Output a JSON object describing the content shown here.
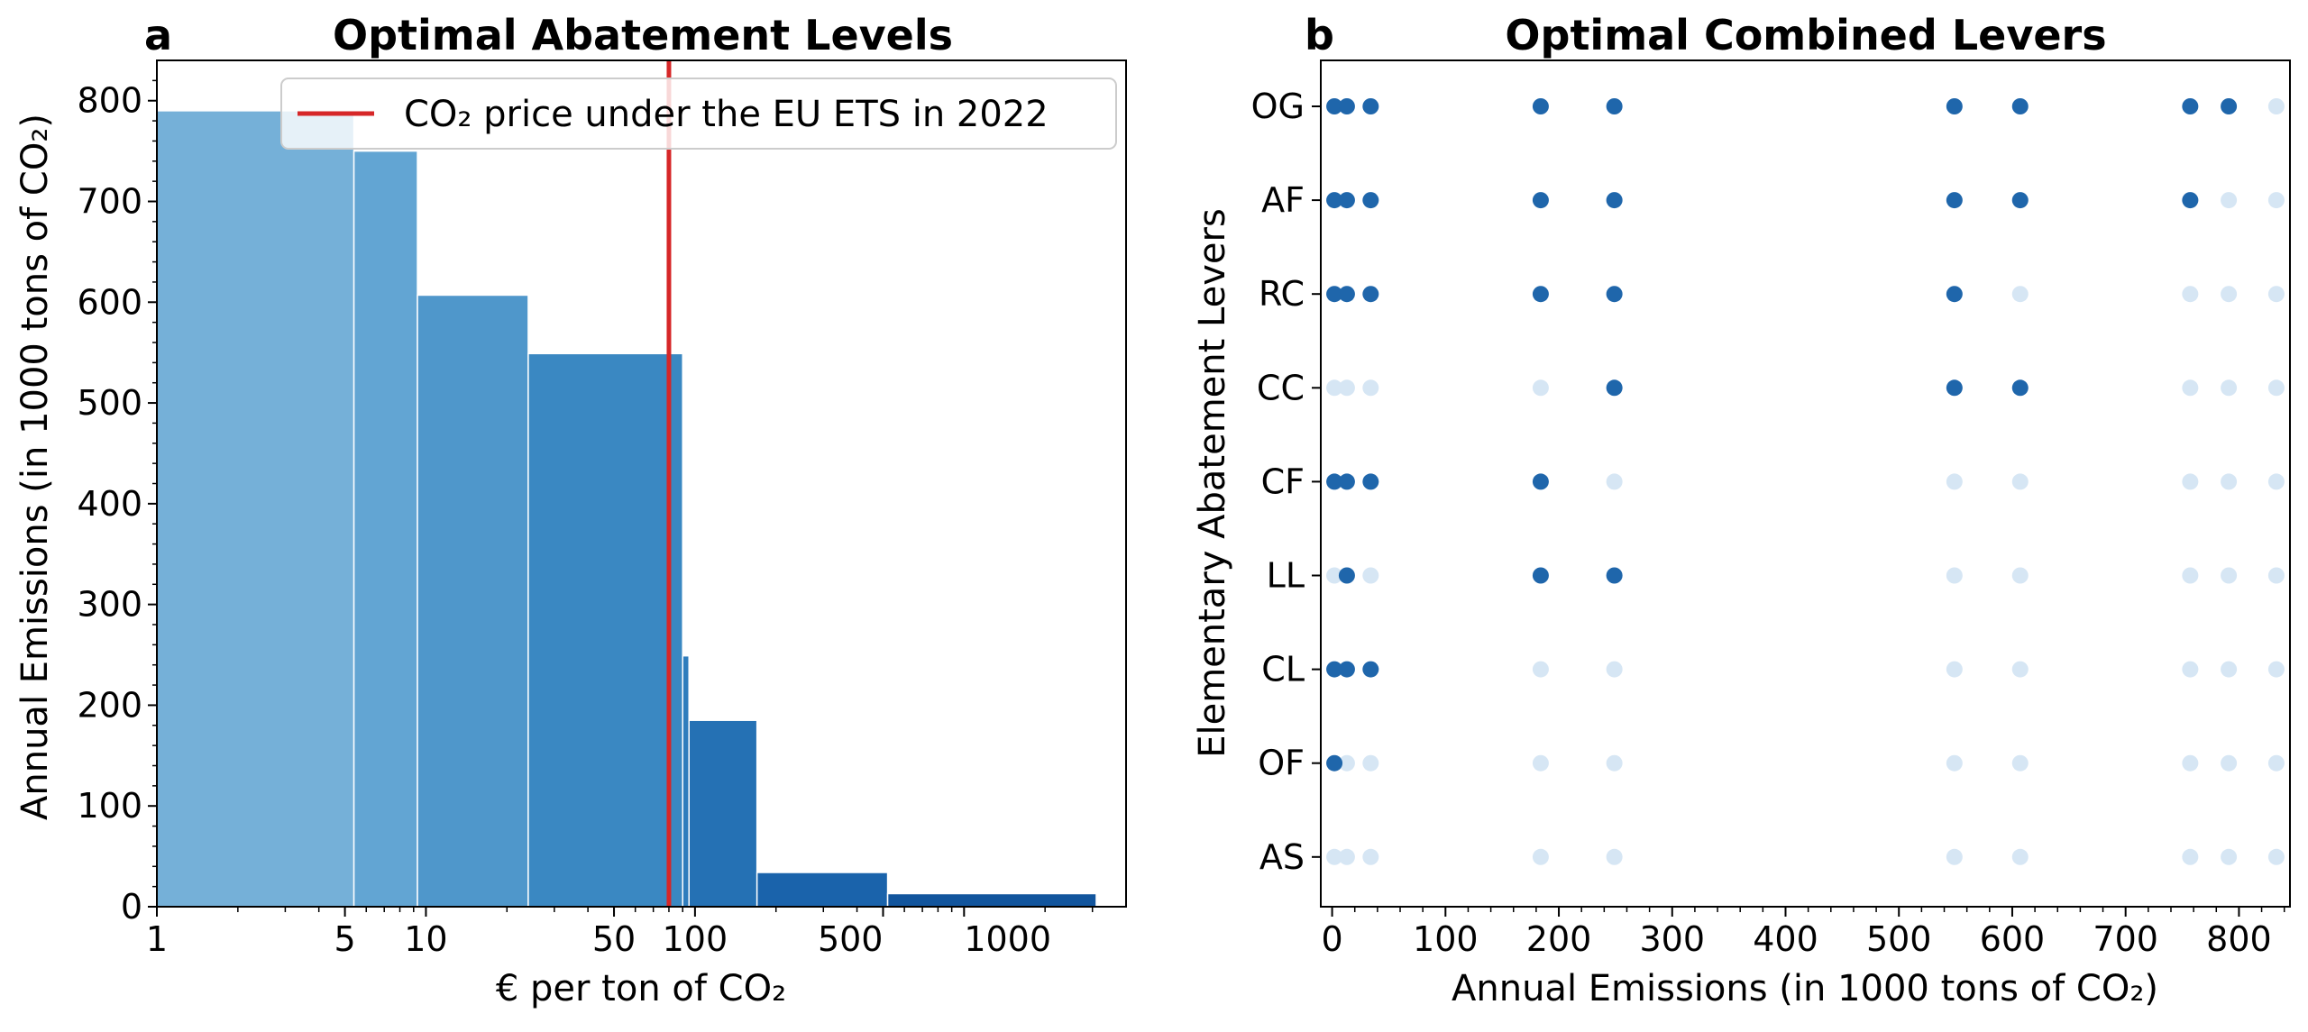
{
  "chart_data": [
    {
      "panel": "a",
      "type": "bar",
      "title": "Optimal Abatement Levels",
      "xlabel": "€ per ton of CO₂",
      "ylabel": "Annual Emissions (in 1000 tons of CO₂)",
      "xscale": "log",
      "xlim": [
        1,
        4000
      ],
      "ylim": [
        0,
        840
      ],
      "xticks": [
        1,
        5,
        10,
        50,
        100,
        500,
        1000
      ],
      "xtick_labels": [
        "1",
        "5",
        "10",
        "50",
        "100",
        "500",
        "1000"
      ],
      "yticks": [
        0,
        100,
        200,
        300,
        400,
        500,
        600,
        700,
        800
      ],
      "bars": [
        {
          "x0": 1,
          "x1": 5.4,
          "value": 790,
          "color": "#75b0d8"
        },
        {
          "x0": 5.4,
          "x1": 9.3,
          "value": 750,
          "color": "#62a5d3"
        },
        {
          "x0": 9.3,
          "x1": 24,
          "value": 607,
          "color": "#4f97cb"
        },
        {
          "x0": 24,
          "x1": 90,
          "value": 549,
          "color": "#3a88c2"
        },
        {
          "x0": 90,
          "x1": 95,
          "value": 249,
          "color": "#2f7dbd"
        },
        {
          "x0": 95,
          "x1": 170,
          "value": 185,
          "color": "#2571b4"
        },
        {
          "x0": 170,
          "x1": 520,
          "value": 34,
          "color": "#1a63ab"
        },
        {
          "x0": 520,
          "x1": 3100,
          "value": 13,
          "color": "#12559d"
        }
      ],
      "reference_line": {
        "x": 80,
        "label": "CO₂ price under the EU ETS in 2022",
        "color": "#d62728"
      },
      "legend_position": "top-right"
    },
    {
      "panel": "b",
      "type": "scatter",
      "title": "Optimal Combined Levers",
      "xlabel": "Annual Emissions (in 1000 tons of CO₂)",
      "ylabel": "Elementary Abatement Levers",
      "xlim": [
        -10,
        845
      ],
      "xticks": [
        0,
        100,
        200,
        300,
        400,
        500,
        600,
        700,
        800
      ],
      "categories": [
        "OG",
        "AF",
        "RC",
        "CC",
        "CF",
        "LL",
        "CL",
        "OF",
        "AS"
      ],
      "x": [
        2,
        13,
        34,
        184,
        249,
        549,
        607,
        757,
        791,
        833
      ],
      "active_color": "#1f66ab",
      "inactive_color": "#d6e6f4",
      "active": {
        "OG": [
          1,
          1,
          1,
          1,
          1,
          1,
          1,
          1,
          1,
          0
        ],
        "AF": [
          1,
          1,
          1,
          1,
          1,
          1,
          1,
          1,
          0,
          0
        ],
        "RC": [
          1,
          1,
          1,
          1,
          1,
          1,
          0,
          0,
          0,
          0
        ],
        "CC": [
          0,
          0,
          0,
          0,
          1,
          1,
          1,
          0,
          0,
          0
        ],
        "CF": [
          1,
          1,
          1,
          1,
          0,
          0,
          0,
          0,
          0,
          0
        ],
        "LL": [
          0,
          1,
          0,
          1,
          1,
          0,
          0,
          0,
          0,
          0
        ],
        "CL": [
          1,
          1,
          1,
          0,
          0,
          0,
          0,
          0,
          0,
          0
        ],
        "OF": [
          1,
          0,
          0,
          0,
          0,
          0,
          0,
          0,
          0,
          0
        ],
        "AS": [
          0,
          0,
          0,
          0,
          0,
          0,
          0,
          0,
          0,
          0
        ]
      }
    }
  ]
}
